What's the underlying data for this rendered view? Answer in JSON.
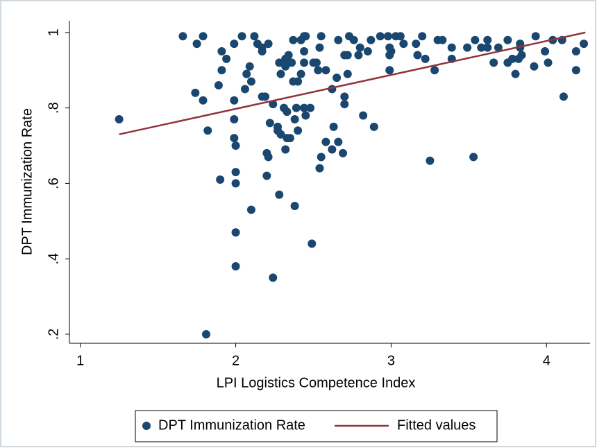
{
  "chart_data": {
    "type": "scatter",
    "xlabel": "LPI Logistics Competence Index",
    "ylabel": "DPT Immunization Rate",
    "xlim": [
      0.93,
      4.28
    ],
    "xticks": [
      1,
      2,
      3,
      4
    ],
    "ylim": [
      0.176,
      1.031
    ],
    "yticks": [
      {
        "value": 0.2,
        "label": ".2"
      },
      {
        "value": 0.4,
        "label": ".4"
      },
      {
        "value": 0.6,
        "label": ".6"
      },
      {
        "value": 0.8,
        "label": ".8"
      },
      {
        "value": 1,
        "label": "1"
      }
    ],
    "legend": "bottom",
    "series": [
      {
        "name": "DPT Immunization Rate",
        "type": "scatter",
        "color": "#1a476f",
        "x": [
          1.25,
          1.66,
          1.75,
          1.79,
          1.74,
          1.79,
          1.82,
          1.81,
          1.89,
          1.91,
          1.91,
          1.94,
          1.9,
          1.99,
          1.99,
          1.99,
          1.99,
          2.0,
          2.0,
          2.0,
          2.0,
          2.0,
          2.04,
          2.06,
          2.07,
          2.09,
          2.1,
          2.1,
          2.12,
          2.14,
          2.17,
          2.17,
          2.17,
          2.19,
          2.21,
          2.2,
          2.21,
          2.2,
          2.22,
          2.24,
          2.24,
          2.27,
          2.28,
          2.29,
          2.27,
          2.29,
          2.28,
          2.31,
          2.32,
          2.32,
          2.33,
          2.32,
          2.33,
          2.34,
          2.36,
          2.35,
          2.37,
          2.37,
          2.38,
          2.38,
          2.39,
          2.4,
          2.4,
          2.42,
          2.42,
          2.44,
          2.44,
          2.44,
          2.44,
          2.45,
          2.45,
          2.48,
          2.49,
          2.5,
          2.52,
          2.53,
          2.54,
          2.55,
          2.54,
          2.55,
          2.58,
          2.58,
          2.62,
          2.63,
          2.62,
          2.65,
          2.66,
          2.66,
          2.7,
          2.69,
          2.7,
          2.7,
          2.72,
          2.72,
          2.73,
          2.76,
          2.79,
          2.8,
          2.82,
          2.85,
          2.87,
          2.89,
          2.93,
          2.98,
          2.99,
          2.99,
          2.99,
          3.0,
          3.03,
          3.06,
          3.08,
          3.16,
          3.17,
          3.2,
          3.22,
          3.25,
          3.28,
          3.3,
          3.33,
          3.39,
          3.39,
          3.49,
          3.53,
          3.54,
          3.58,
          3.62,
          3.62,
          3.66,
          3.69,
          3.75,
          3.75,
          3.78,
          3.8,
          3.82,
          3.84,
          3.83,
          3.83,
          3.93,
          3.92,
          3.99,
          4.01,
          4.04,
          4.1,
          4.11,
          4.19,
          4.19,
          4.24
        ],
        "values": [
          0.77,
          0.99,
          0.97,
          0.99,
          0.84,
          0.82,
          0.74,
          0.2,
          0.86,
          0.95,
          0.9,
          0.93,
          0.61,
          0.97,
          0.82,
          0.77,
          0.72,
          0.7,
          0.63,
          0.6,
          0.47,
          0.38,
          0.99,
          0.85,
          0.89,
          0.91,
          0.87,
          0.53,
          0.99,
          0.97,
          0.96,
          0.95,
          0.83,
          0.83,
          0.97,
          0.68,
          0.67,
          0.62,
          0.76,
          0.81,
          0.35,
          0.75,
          0.92,
          0.89,
          0.74,
          0.73,
          0.57,
          0.8,
          0.93,
          0.91,
          0.79,
          0.69,
          0.72,
          0.94,
          0.92,
          0.72,
          0.87,
          0.98,
          0.77,
          0.54,
          0.8,
          0.74,
          0.87,
          0.98,
          0.89,
          0.99,
          0.95,
          0.92,
          0.8,
          0.99,
          0.78,
          0.8,
          0.44,
          0.92,
          0.92,
          0.9,
          0.96,
          0.99,
          0.64,
          0.67,
          0.9,
          0.71,
          0.85,
          0.75,
          0.69,
          0.88,
          0.98,
          0.71,
          0.94,
          0.68,
          0.81,
          0.83,
          0.89,
          0.94,
          0.99,
          0.98,
          0.94,
          0.96,
          0.78,
          0.95,
          0.98,
          0.75,
          0.99,
          0.99,
          0.96,
          0.94,
          0.9,
          0.95,
          0.99,
          0.99,
          0.97,
          0.97,
          0.94,
          0.99,
          0.93,
          0.66,
          0.9,
          0.98,
          0.98,
          0.96,
          0.93,
          0.96,
          0.67,
          0.98,
          0.96,
          0.98,
          0.96,
          0.92,
          0.96,
          0.98,
          0.92,
          0.93,
          0.89,
          0.93,
          0.94,
          0.97,
          0.96,
          0.99,
          0.91,
          0.95,
          0.92,
          0.98,
          0.98,
          0.83,
          0.95,
          0.9,
          0.97
        ]
      },
      {
        "name": "Fitted values",
        "type": "line",
        "color": "#90353b",
        "x": [
          1.25,
          4.25
        ],
        "values": [
          0.73,
          1.0
        ]
      }
    ]
  }
}
